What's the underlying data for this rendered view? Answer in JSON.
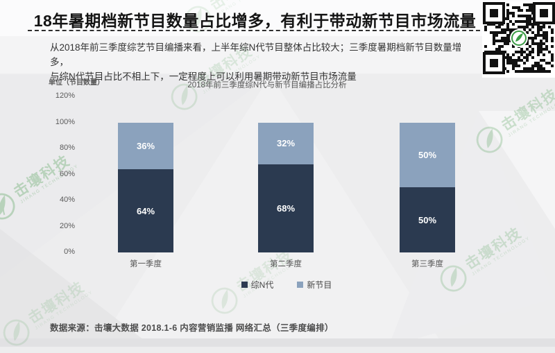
{
  "header": {
    "title": "18年暑期档新节目数量占比增多，有利于带动新节目市场流量",
    "intro_line1": "从2018年前三季度综艺节目编播来看，上半年综N代节目整体占比较大；三季度暑期档新节目数量增多，",
    "intro_line2": "与综N代节目占比不相上下，一定程度上可以利用暑期带动新节目市场流量"
  },
  "chart_data": {
    "type": "bar",
    "stacked": true,
    "title": "2018年前三季度综N代与新节目编播占比分析",
    "ylabel": "单位（节目数量）",
    "categories": [
      "第一季度",
      "第二季度",
      "第三季度"
    ],
    "series": [
      {
        "name": "综N代",
        "values": [
          64,
          68,
          50
        ],
        "color": "#2b3a50"
      },
      {
        "name": "新节目",
        "values": [
          36,
          32,
          50
        ],
        "color": "#8ba2bd"
      }
    ],
    "ylim": [
      0,
      120
    ],
    "ytick_step": 20,
    "value_suffix": "%",
    "grid": false,
    "legend_position": "bottom"
  },
  "footer": {
    "source": "数据来源：击壤大数据  2018.1-6 内容营销监播   网络汇总（三季度编排）"
  },
  "watermark": {
    "brand": "击壤科技",
    "brand_en": "JIRANG TECHNOLOGY",
    "color": "#4e9e53"
  },
  "qr": {
    "dark_color": "#111111",
    "logo_color": "#3a9b44"
  }
}
